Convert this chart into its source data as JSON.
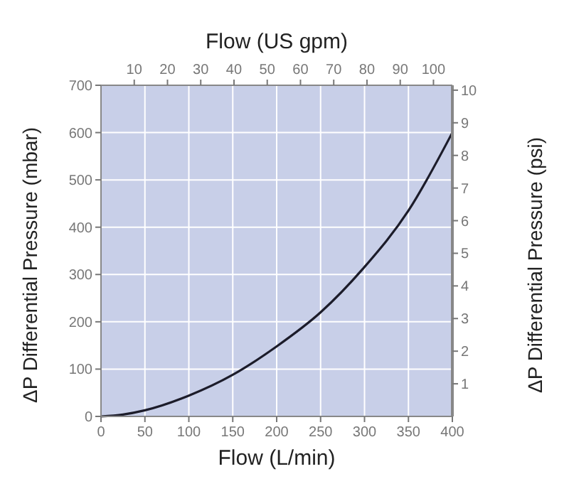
{
  "chart_data": {
    "type": "line",
    "xlabel": "Flow (L/min)",
    "ylabel": "ΔP Differential Pressure (mbar)",
    "y2label": "ΔP Differential Pressure (psi)",
    "x2label": "Flow (US gpm)",
    "x": [
      0,
      25,
      50,
      100,
      150,
      200,
      250,
      300,
      350,
      400
    ],
    "series": [
      {
        "color": "#1c1c2a",
        "values": [
          0,
          4,
          13,
          44,
          88,
          148,
          220,
          316,
          435,
          600
        ]
      }
    ],
    "xlim": [
      0,
      400
    ],
    "xticks": [
      0,
      50,
      100,
      150,
      200,
      250,
      300,
      350,
      400
    ],
    "ylim": [
      0,
      700
    ],
    "yticks": [
      0,
      100,
      200,
      300,
      400,
      500,
      600,
      700
    ],
    "x2lim": [
      0,
      105.68
    ],
    "x2ticks": [
      10,
      20,
      30,
      40,
      50,
      60,
      70,
      80,
      90,
      100
    ],
    "y2lim": [
      0,
      10.15
    ],
    "y2ticks": [
      1,
      2,
      3,
      4,
      5,
      6,
      7,
      8,
      9,
      10
    ],
    "grid": true,
    "marker": "none",
    "line_style": "solid"
  }
}
